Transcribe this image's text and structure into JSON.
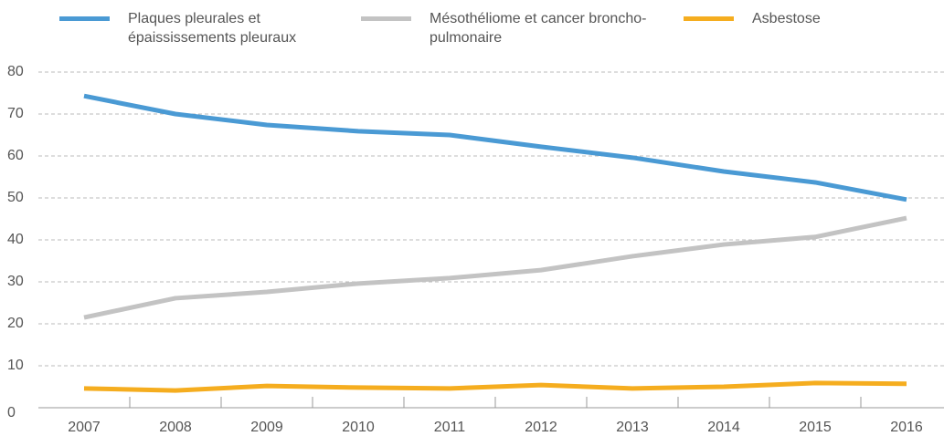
{
  "chart_data": {
    "type": "line",
    "categories": [
      "2007",
      "2008",
      "2009",
      "2010",
      "2011",
      "2012",
      "2013",
      "2014",
      "2015",
      "2016"
    ],
    "series": [
      {
        "name": "Plaques pleurales et épaississements pleuraux",
        "color": "#4a9ad4",
        "values": [
          74.3,
          70,
          67.4,
          65.9,
          65,
          62.2,
          59.6,
          56.3,
          53.7,
          49.6
        ]
      },
      {
        "name": "Mésothéliome et cancer broncho-pulmonaire",
        "color": "#c3c3c3",
        "values": [
          21.5,
          26.1,
          27.6,
          29.6,
          30.9,
          32.8,
          36.1,
          38.9,
          40.7,
          45.2
        ]
      },
      {
        "name": "Asbestose",
        "color": "#f5ad1f",
        "values": [
          4.6,
          4.1,
          5.2,
          4.8,
          4.6,
          5.4,
          4.6,
          5,
          5.9,
          5.7
        ]
      }
    ],
    "ylim": [
      0,
      80
    ],
    "yticks": [
      0,
      10,
      20,
      30,
      40,
      50,
      60,
      70,
      80
    ],
    "grid": true,
    "legend": "top"
  }
}
